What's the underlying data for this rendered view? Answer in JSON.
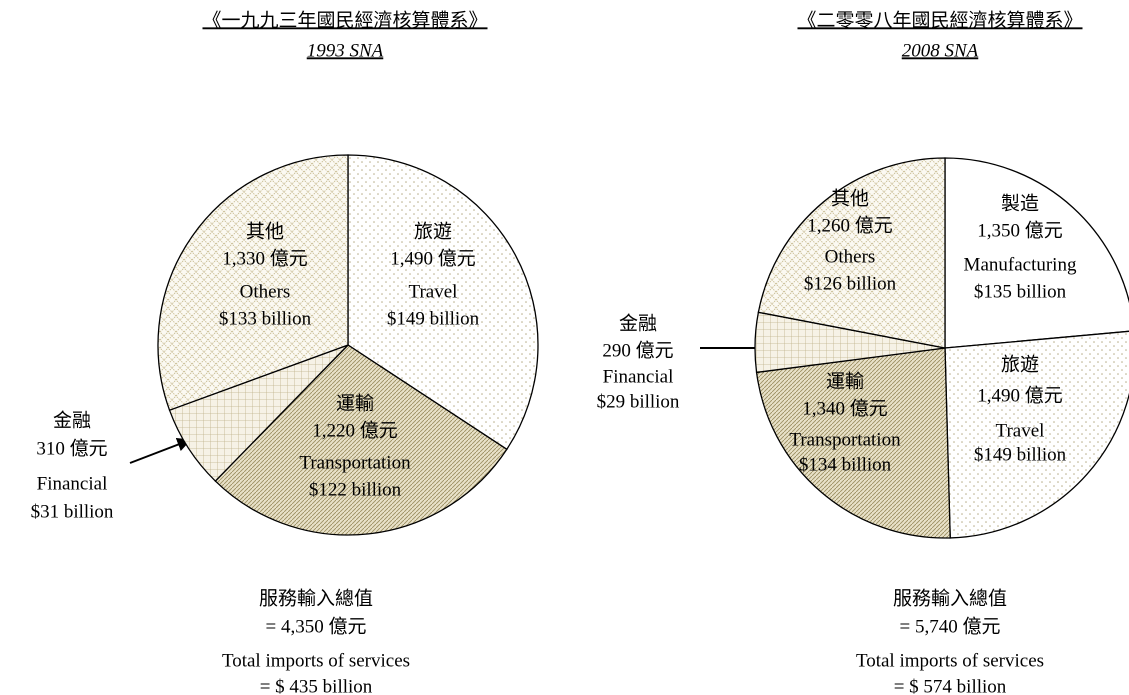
{
  "chart_data": [
    {
      "type": "pie",
      "title": "《一九九三年國民經濟核算體系》",
      "subtitle": "1993 SNA",
      "categories": [
        "旅遊",
        "運輸",
        "金融",
        "其他"
      ],
      "categories_en": [
        "Travel",
        "Transportation",
        "Financial",
        "Others"
      ],
      "values": [
        1490,
        1220,
        310,
        1330
      ],
      "value_labels": [
        "1,490 億元",
        "1,220 億元",
        "310 億元",
        "1,330 億元"
      ],
      "value_labels_usd": [
        "$149 billion",
        "$122 billion",
        "$31 billion",
        "$133 billion"
      ],
      "patterns": [
        "dots",
        "hatch",
        "grid",
        "checks"
      ],
      "total_label": "服務輸入總值",
      "total_value": "= 4,350 億元",
      "total_label_en": "Total imports of services",
      "total_value_en": "= $ 435 billion"
    },
    {
      "type": "pie",
      "title": "《二零零八年國民經濟核算體系》",
      "subtitle": "2008 SNA",
      "categories": [
        "製造",
        "旅遊",
        "運輸",
        "金融",
        "其他"
      ],
      "categories_en": [
        "Manufacturing",
        "Travel",
        "Transportation",
        "Financial",
        "Others"
      ],
      "values": [
        1350,
        1490,
        1340,
        290,
        1260
      ],
      "value_labels": [
        "1,350 億元",
        "1,490 億元",
        "1,340 億元",
        "290 億元",
        "1,260 億元"
      ],
      "value_labels_usd": [
        "$135 billion",
        "$149 billion",
        "$134 billion",
        "$29 billion",
        "$126 billion"
      ],
      "patterns": [
        "none",
        "dots",
        "hatch",
        "grid",
        "checks"
      ],
      "total_label": "服務輸入總值",
      "total_value": "= 5,740 億元",
      "total_label_en": "Total imports of services",
      "total_value_en": "= $ 574 billion"
    }
  ]
}
